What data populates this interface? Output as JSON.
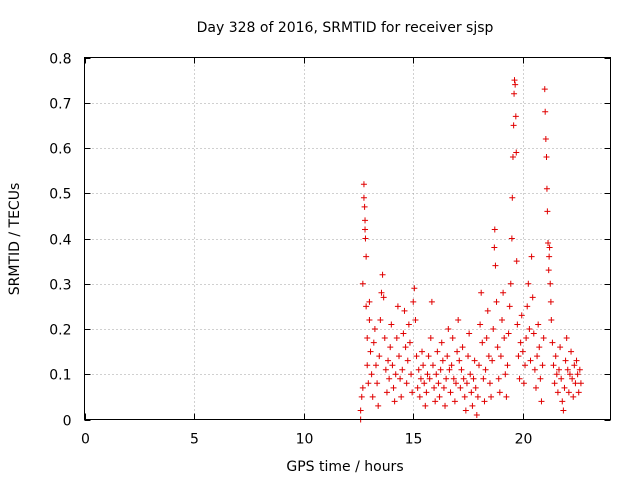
{
  "chart_data": {
    "type": "scatter",
    "title": "Day 328 of 2016, SRMTID for receiver sjsp",
    "xlabel": "GPS time / hours",
    "ylabel": "SRMTID / TECUs",
    "xlim": [
      0,
      24
    ],
    "ylim": [
      0,
      0.8
    ],
    "xticks": [
      0,
      5,
      10,
      15,
      20
    ],
    "xtick_labels": [
      "0",
      "5",
      "10",
      "15",
      "20"
    ],
    "yticks": [
      0,
      0.1,
      0.2,
      0.3,
      0.4,
      0.5,
      0.6,
      0.7,
      0.8
    ],
    "ytick_labels": [
      "0",
      "0.1",
      "0.2",
      "0.3",
      "0.4",
      "0.5",
      "0.6",
      "0.7",
      "0.8"
    ],
    "grid": true,
    "marker": "+",
    "color": "#e00000",
    "series": [
      {
        "name": "SRMTID",
        "points": [
          [
            12.6,
            0.0
          ],
          [
            12.6,
            0.02
          ],
          [
            12.65,
            0.05
          ],
          [
            12.7,
            0.07
          ],
          [
            12.7,
            0.3
          ],
          [
            12.75,
            0.52
          ],
          [
            12.75,
            0.49
          ],
          [
            12.78,
            0.47
          ],
          [
            12.8,
            0.44
          ],
          [
            12.8,
            0.42
          ],
          [
            12.82,
            0.4
          ],
          [
            12.85,
            0.36
          ],
          [
            12.85,
            0.25
          ],
          [
            12.9,
            0.18
          ],
          [
            12.9,
            0.12
          ],
          [
            12.95,
            0.08
          ],
          [
            13.0,
            0.22
          ],
          [
            13.0,
            0.26
          ],
          [
            13.05,
            0.15
          ],
          [
            13.1,
            0.1
          ],
          [
            13.15,
            0.05
          ],
          [
            13.2,
            0.17
          ],
          [
            13.25,
            0.2
          ],
          [
            13.3,
            0.12
          ],
          [
            13.35,
            0.08
          ],
          [
            13.4,
            0.03
          ],
          [
            13.45,
            0.14
          ],
          [
            13.5,
            0.22
          ],
          [
            13.55,
            0.28
          ],
          [
            13.6,
            0.32
          ],
          [
            13.65,
            0.27
          ],
          [
            13.7,
            0.18
          ],
          [
            13.75,
            0.11
          ],
          [
            13.8,
            0.06
          ],
          [
            13.85,
            0.13
          ],
          [
            13.9,
            0.09
          ],
          [
            13.95,
            0.16
          ],
          [
            14.0,
            0.21
          ],
          [
            14.05,
            0.12
          ],
          [
            14.1,
            0.07
          ],
          [
            14.15,
            0.04
          ],
          [
            14.2,
            0.1
          ],
          [
            14.25,
            0.18
          ],
          [
            14.3,
            0.25
          ],
          [
            14.35,
            0.14
          ],
          [
            14.4,
            0.09
          ],
          [
            14.45,
            0.05
          ],
          [
            14.5,
            0.11
          ],
          [
            14.55,
            0.19
          ],
          [
            14.6,
            0.24
          ],
          [
            14.65,
            0.16
          ],
          [
            14.7,
            0.08
          ],
          [
            14.75,
            0.13
          ],
          [
            14.8,
            0.21
          ],
          [
            14.85,
            0.17
          ],
          [
            14.9,
            0.1
          ],
          [
            14.95,
            0.06
          ],
          [
            15.0,
            0.26
          ],
          [
            15.05,
            0.29
          ],
          [
            15.1,
            0.22
          ],
          [
            15.15,
            0.14
          ],
          [
            15.2,
            0.07
          ],
          [
            15.25,
            0.11
          ],
          [
            15.3,
            0.05
          ],
          [
            15.35,
            0.09
          ],
          [
            15.4,
            0.15
          ],
          [
            15.45,
            0.12
          ],
          [
            15.5,
            0.08
          ],
          [
            15.55,
            0.03
          ],
          [
            15.6,
            0.06
          ],
          [
            15.65,
            0.1
          ],
          [
            15.7,
            0.14
          ],
          [
            15.75,
            0.09
          ],
          [
            15.8,
            0.18
          ],
          [
            15.85,
            0.26
          ],
          [
            15.9,
            0.12
          ],
          [
            15.95,
            0.07
          ],
          [
            16.0,
            0.04
          ],
          [
            16.05,
            0.1
          ],
          [
            16.1,
            0.15
          ],
          [
            16.15,
            0.08
          ],
          [
            16.2,
            0.05
          ],
          [
            16.25,
            0.11
          ],
          [
            16.3,
            0.17
          ],
          [
            16.35,
            0.13
          ],
          [
            16.4,
            0.07
          ],
          [
            16.45,
            0.03
          ],
          [
            16.5,
            0.09
          ],
          [
            16.55,
            0.14
          ],
          [
            16.6,
            0.2
          ],
          [
            16.65,
            0.11
          ],
          [
            16.7,
            0.06
          ],
          [
            16.75,
            0.12
          ],
          [
            16.8,
            0.18
          ],
          [
            16.85,
            0.09
          ],
          [
            16.9,
            0.04
          ],
          [
            16.95,
            0.08
          ],
          [
            17.0,
            0.15
          ],
          [
            17.05,
            0.22
          ],
          [
            17.1,
            0.13
          ],
          [
            17.15,
            0.07
          ],
          [
            17.2,
            0.11
          ],
          [
            17.25,
            0.16
          ],
          [
            17.3,
            0.09
          ],
          [
            17.35,
            0.05
          ],
          [
            17.4,
            0.02
          ],
          [
            17.45,
            0.08
          ],
          [
            17.5,
            0.14
          ],
          [
            17.55,
            0.19
          ],
          [
            17.6,
            0.1
          ],
          [
            17.65,
            0.06
          ],
          [
            17.7,
            0.03
          ],
          [
            17.75,
            0.09
          ],
          [
            17.8,
            0.13
          ],
          [
            17.85,
            0.07
          ],
          [
            17.9,
            0.01
          ],
          [
            17.95,
            0.05
          ],
          [
            18.0,
            0.12
          ],
          [
            18.05,
            0.21
          ],
          [
            18.1,
            0.28
          ],
          [
            18.15,
            0.17
          ],
          [
            18.2,
            0.09
          ],
          [
            18.25,
            0.04
          ],
          [
            18.3,
            0.11
          ],
          [
            18.35,
            0.18
          ],
          [
            18.4,
            0.24
          ],
          [
            18.45,
            0.14
          ],
          [
            18.5,
            0.08
          ],
          [
            18.55,
            0.05
          ],
          [
            18.6,
            0.13
          ],
          [
            18.65,
            0.2
          ],
          [
            18.7,
            0.38
          ],
          [
            18.72,
            0.42
          ],
          [
            18.75,
            0.34
          ],
          [
            18.8,
            0.26
          ],
          [
            18.85,
            0.16
          ],
          [
            18.9,
            0.09
          ],
          [
            18.95,
            0.06
          ],
          [
            19.0,
            0.14
          ],
          [
            19.05,
            0.22
          ],
          [
            19.1,
            0.28
          ],
          [
            19.15,
            0.18
          ],
          [
            19.2,
            0.1
          ],
          [
            19.25,
            0.05
          ],
          [
            19.3,
            0.12
          ],
          [
            19.35,
            0.19
          ],
          [
            19.4,
            0.25
          ],
          [
            19.45,
            0.3
          ],
          [
            19.5,
            0.4
          ],
          [
            19.52,
            0.49
          ],
          [
            19.55,
            0.58
          ],
          [
            19.58,
            0.65
          ],
          [
            19.6,
            0.72
          ],
          [
            19.62,
            0.75
          ],
          [
            19.65,
            0.74
          ],
          [
            19.68,
            0.67
          ],
          [
            19.7,
            0.59
          ],
          [
            19.72,
            0.35
          ],
          [
            19.75,
            0.21
          ],
          [
            19.8,
            0.14
          ],
          [
            19.85,
            0.09
          ],
          [
            19.9,
            0.17
          ],
          [
            19.95,
            0.23
          ],
          [
            20.0,
            0.15
          ],
          [
            20.05,
            0.08
          ],
          [
            20.1,
            0.12
          ],
          [
            20.15,
            0.18
          ],
          [
            20.2,
            0.25
          ],
          [
            20.25,
            0.3
          ],
          [
            20.3,
            0.2
          ],
          [
            20.35,
            0.13
          ],
          [
            20.4,
            0.36
          ],
          [
            20.45,
            0.27
          ],
          [
            20.5,
            0.19
          ],
          [
            20.55,
            0.11
          ],
          [
            20.6,
            0.07
          ],
          [
            20.65,
            0.14
          ],
          [
            20.7,
            0.21
          ],
          [
            20.75,
            0.16
          ],
          [
            20.8,
            0.09
          ],
          [
            20.85,
            0.04
          ],
          [
            20.9,
            0.12
          ],
          [
            20.95,
            0.18
          ],
          [
            21.0,
            0.73
          ],
          [
            21.02,
            0.68
          ],
          [
            21.05,
            0.62
          ],
          [
            21.08,
            0.58
          ],
          [
            21.1,
            0.51
          ],
          [
            21.12,
            0.46
          ],
          [
            21.15,
            0.39
          ],
          [
            21.18,
            0.33
          ],
          [
            21.2,
            0.36
          ],
          [
            21.22,
            0.38
          ],
          [
            21.25,
            0.3
          ],
          [
            21.28,
            0.26
          ],
          [
            21.3,
            0.22
          ],
          [
            21.35,
            0.17
          ],
          [
            21.4,
            0.12
          ],
          [
            21.45,
            0.08
          ],
          [
            21.5,
            0.14
          ],
          [
            21.55,
            0.1
          ],
          [
            21.6,
            0.06
          ],
          [
            21.65,
            0.11
          ],
          [
            21.7,
            0.16
          ],
          [
            21.75,
            0.09
          ],
          [
            21.8,
            0.04
          ],
          [
            21.85,
            0.02
          ],
          [
            21.9,
            0.07
          ],
          [
            21.95,
            0.13
          ],
          [
            22.0,
            0.18
          ],
          [
            22.05,
            0.11
          ],
          [
            22.1,
            0.06
          ],
          [
            22.15,
            0.1
          ],
          [
            22.2,
            0.15
          ],
          [
            22.25,
            0.09
          ],
          [
            22.3,
            0.05
          ],
          [
            22.35,
            0.12
          ],
          [
            22.4,
            0.08
          ],
          [
            22.45,
            0.13
          ],
          [
            22.5,
            0.1
          ],
          [
            22.55,
            0.06
          ],
          [
            22.6,
            0.11
          ],
          [
            22.65,
            0.08
          ]
        ]
      }
    ]
  }
}
